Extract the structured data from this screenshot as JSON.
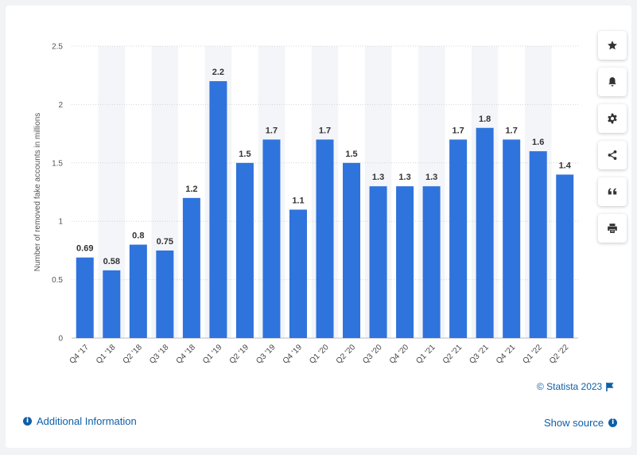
{
  "chart_data": {
    "type": "bar",
    "categories": [
      "Q4 '17",
      "Q1 '18",
      "Q2 '18",
      "Q3 '18",
      "Q4 '18",
      "Q1 '19",
      "Q2 '19",
      "Q3 '19",
      "Q4 '19",
      "Q1 '20",
      "Q2 '20",
      "Q3 '20",
      "Q4 '20",
      "Q1 '21",
      "Q2 '21",
      "Q3 '21",
      "Q4 '21",
      "Q1 '22",
      "Q2 '22"
    ],
    "values": [
      0.69,
      0.58,
      0.8,
      0.75,
      1.2,
      2.2,
      1.5,
      1.7,
      1.1,
      1.7,
      1.5,
      1.3,
      1.3,
      1.3,
      1.7,
      1.8,
      1.7,
      1.6,
      1.4
    ],
    "labels": [
      "0.69",
      "0.58",
      "0.8",
      "0.75",
      "1.2",
      "2.2",
      "1.5",
      "1.7",
      "1.1",
      "1.7",
      "1.5",
      "1.3",
      "1.3",
      "1.3",
      "1.7",
      "1.8",
      "1.7",
      "1.6",
      "1.4"
    ],
    "ylabel": "Number of removed fake accounts in millions",
    "xlabel": "",
    "ylim": [
      0,
      2.5
    ],
    "yticks": [
      0,
      0.5,
      1,
      1.5,
      2,
      2.5
    ],
    "ytick_labels": [
      "0",
      "0.5",
      "1",
      "1.5",
      "2",
      "2.5"
    ],
    "grid": "horizontal dotted",
    "bar_color": "#2f73dc"
  },
  "toolbar": {
    "icons": [
      "star-icon",
      "bell-icon",
      "gear-icon",
      "share-icon",
      "quote-icon",
      "print-icon"
    ]
  },
  "footer": {
    "additional_info": "Additional Information",
    "copyright": "© Statista 2023",
    "show_source": "Show source"
  },
  "colors": {
    "link": "#0e5fa8",
    "bar": "#2f73dc",
    "alt_band": "#f3f5f8"
  }
}
